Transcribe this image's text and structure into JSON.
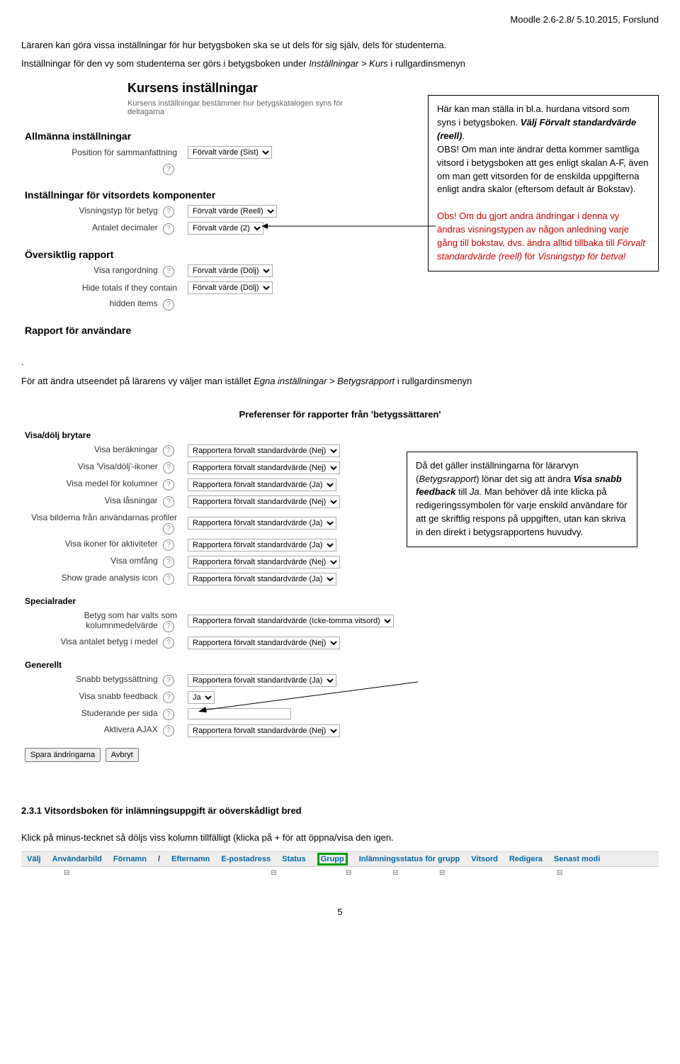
{
  "header": "Moodle 2.6-2.8/ 5.10.2015,  Forslund",
  "intro1": "Läraren kan göra vissa inställningar för hur betygsboken ska se ut dels för sig själv, dels för studenterna.",
  "intro2_pre": "Inställningar för den vy som studenterna ser görs i betygsboken under ",
  "intro2_italic": "Inställningar > Kurs",
  "intro2_post": " i rullgardinsmenyn",
  "kurs": {
    "title": "Kursens inställningar",
    "desc": "Kursens inställningar bestämmer hur betygskatalogen syns för deltagarna",
    "allmanna": "Allmänna inställningar",
    "pos_label": "Position för sammanfattning",
    "pos_val": "Förvalt värde (Sist)",
    "vitsord_heading": "Inställningar för vitsordets komponenter",
    "visningstyp_label": "Visningstyp för betyg",
    "visningstyp_val": "Förvalt värde (Reell)",
    "antal_label": "Antalet decimaler",
    "antal_val": "Förvalt värde (2)",
    "oversikt": "Översiktlig rapport",
    "visa_rang_label": "Visa rangordning",
    "visa_rang_val": "Förvalt värde (Dölj)",
    "hide_totals_label": "Hide totals if they contain",
    "hide_totals_val": "Förvalt värde (Dölj)",
    "hidden_items": "hidden items",
    "rapport": "Rapport för användare"
  },
  "callout1": {
    "l1": "Här kan man ställa in bl.a. hurdana vitsord som syns i betygsboken. ",
    "l1b": "Välj Förvalt standardvärde (reell)",
    "l2": "OBS! Om man inte ändrar detta kommer samtliga vitsord i betygsboken att ges enligt skalan A-F, även om man gett vitsorden för de enskilda uppgifterna enligt andra skalor (eftersom default är Bokstav).",
    "l3a": "Obs! Om du gjort andra ändringar i denna vy ändras visningstypen av någon anledning varje gång till bokstav, dvs. ändra alltid tillbaka till ",
    "l3b": "Förvalt standardvärde (reell)",
    "l3c": " för ",
    "l3d": "Visningstyp för betva!"
  },
  "section2": {
    "intro_pre": "För att ändra utseendet på lärarens vy väljer man istället ",
    "intro_italic": "Egna inställningar > Betygsrapport",
    "intro_post": " i rullgardinsmenyn",
    "pref_heading": "Preferenser för rapporter från 'betygssättaren'",
    "g1": "Visa/dölj brytare",
    "rows1": [
      {
        "label": "Visa beräkningar",
        "val": "Rapportera förvalt standardvärde (Nej)"
      },
      {
        "label": "Visa 'Visa/dölj'-ikoner",
        "val": "Rapportera förvalt standardvärde (Nej)"
      },
      {
        "label": "Visa medel för kolumner",
        "val": "Rapportera förvalt standardvärde (Ja)"
      },
      {
        "label": "Visa låsningar",
        "val": "Rapportera förvalt standardvärde (Nej)"
      },
      {
        "label": "Visa bilderna från användarnas profiler",
        "val": "Rapportera förvalt standardvärde (Ja)"
      },
      {
        "label": "Visa ikoner för aktiviteter",
        "val": "Rapportera förvalt standardvärde (Ja)"
      },
      {
        "label": "Visa omfång",
        "val": "Rapportera förvalt standardvärde (Nej)"
      },
      {
        "label": "Show grade analysis icon",
        "val": "Rapportera förvalt standardvärde (Ja)"
      }
    ],
    "g2": "Specialrader",
    "rows2": [
      {
        "label": "Betyg som har valts som kolumnmedelvärde",
        "val": "Rapportera förvalt standardvärde (Icke-tomma vitsord)"
      },
      {
        "label": "Visa antalet betyg i medel",
        "val": "Rapportera förvalt standardvärde (Nej)"
      }
    ],
    "g3": "Generellt",
    "rows3": [
      {
        "label": "Snabb betygssättning",
        "val": "Rapportera förvalt standardvärde (Ja)"
      },
      {
        "label": "Visa snabb feedback",
        "val": "Ja"
      },
      {
        "label": "Studerande per sida",
        "val": ""
      },
      {
        "label": "Aktivera AJAX",
        "val": "Rapportera förvalt standardvärde (Nej)"
      }
    ],
    "save_btn": "Spara ändringarna",
    "cancel_btn": "Avbryt"
  },
  "callout2": {
    "l1": "Då det gäller inställningarna för lärarvyn (",
    "l1i": "Betygsrapport",
    "l1b": ") lönar det sig att ändra ",
    "l1bold": "Visa snabb feedback",
    "l1c": " till ",
    "l1d": "Ja.",
    "l2": " Man behöver då inte klicka på redigeringssymbolen för varje enskild användare för att ge skriftlig respons på uppgiften, utan kan skriva in den direkt i betygsrapportens huvudvy."
  },
  "sec3": {
    "heading": "2.3.1 Vitsordsboken för inlämningsuppgift är oöverskådligt bred",
    "text": "Klick på minus-tecknet så döljs viss kolumn tillfälligt (klicka på + för att öppna/visa den igen.",
    "cols": [
      "Välj",
      "Användarbild",
      "Förnamn",
      "/",
      "Efternamn",
      "E-postadress",
      "Status",
      "Grupp",
      "Inlämningsstatus för grupp",
      "Vitsord",
      "Redigera",
      "Senast modi"
    ]
  },
  "page": "5"
}
